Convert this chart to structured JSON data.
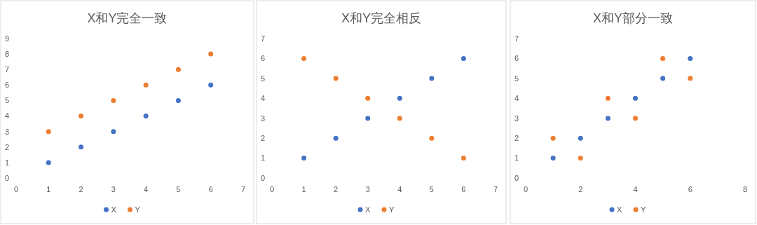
{
  "chart_data": [
    {
      "type": "scatter",
      "title": "X和Y完全一致",
      "x": [
        1,
        2,
        3,
        4,
        5,
        6
      ],
      "series": [
        {
          "name": "X",
          "color": "#4472c4",
          "values": [
            1,
            2,
            3,
            4,
            5,
            6
          ]
        },
        {
          "name": "Y",
          "color": "#ed7d31",
          "values": [
            3,
            4,
            5,
            6,
            7,
            8
          ]
        }
      ],
      "xlim": [
        0,
        7
      ],
      "xticks": [
        0,
        1,
        2,
        3,
        4,
        5,
        6,
        7
      ],
      "ylim": [
        0,
        9
      ],
      "yticks": [
        0,
        1,
        2,
        3,
        4,
        5,
        6,
        7,
        8,
        9
      ],
      "legend": "bottom",
      "marker": "circle",
      "grid": false
    },
    {
      "type": "scatter",
      "title": "X和Y完全相反",
      "x": [
        1,
        2,
        3,
        4,
        5,
        6
      ],
      "series": [
        {
          "name": "X",
          "color": "#4472c4",
          "values": [
            1,
            2,
            3,
            4,
            5,
            6
          ]
        },
        {
          "name": "Y",
          "color": "#ed7d31",
          "values": [
            6,
            5,
            4,
            3,
            2,
            1
          ]
        }
      ],
      "xlim": [
        0,
        7
      ],
      "xticks": [
        0,
        1,
        2,
        3,
        4,
        5,
        6,
        7
      ],
      "ylim": [
        0,
        7
      ],
      "yticks": [
        0,
        1,
        2,
        3,
        4,
        5,
        6,
        7
      ],
      "legend": "bottom",
      "marker": "circle",
      "grid": false
    },
    {
      "type": "scatter",
      "title": "X和Y部分一致",
      "x": [
        1,
        2,
        3,
        4,
        5,
        6
      ],
      "series": [
        {
          "name": "X",
          "color": "#4472c4",
          "values": [
            1,
            2,
            3,
            4,
            5,
            6
          ]
        },
        {
          "name": "Y",
          "color": "#ed7d31",
          "values": [
            2,
            1,
            4,
            3,
            6,
            5
          ]
        }
      ],
      "xlim": [
        0,
        8
      ],
      "xticks": [
        0,
        2,
        4,
        6,
        8
      ],
      "ylim": [
        0,
        7
      ],
      "yticks": [
        0,
        1,
        2,
        3,
        4,
        5,
        6,
        7
      ],
      "legend": "bottom",
      "marker": "circle",
      "grid": false
    }
  ]
}
